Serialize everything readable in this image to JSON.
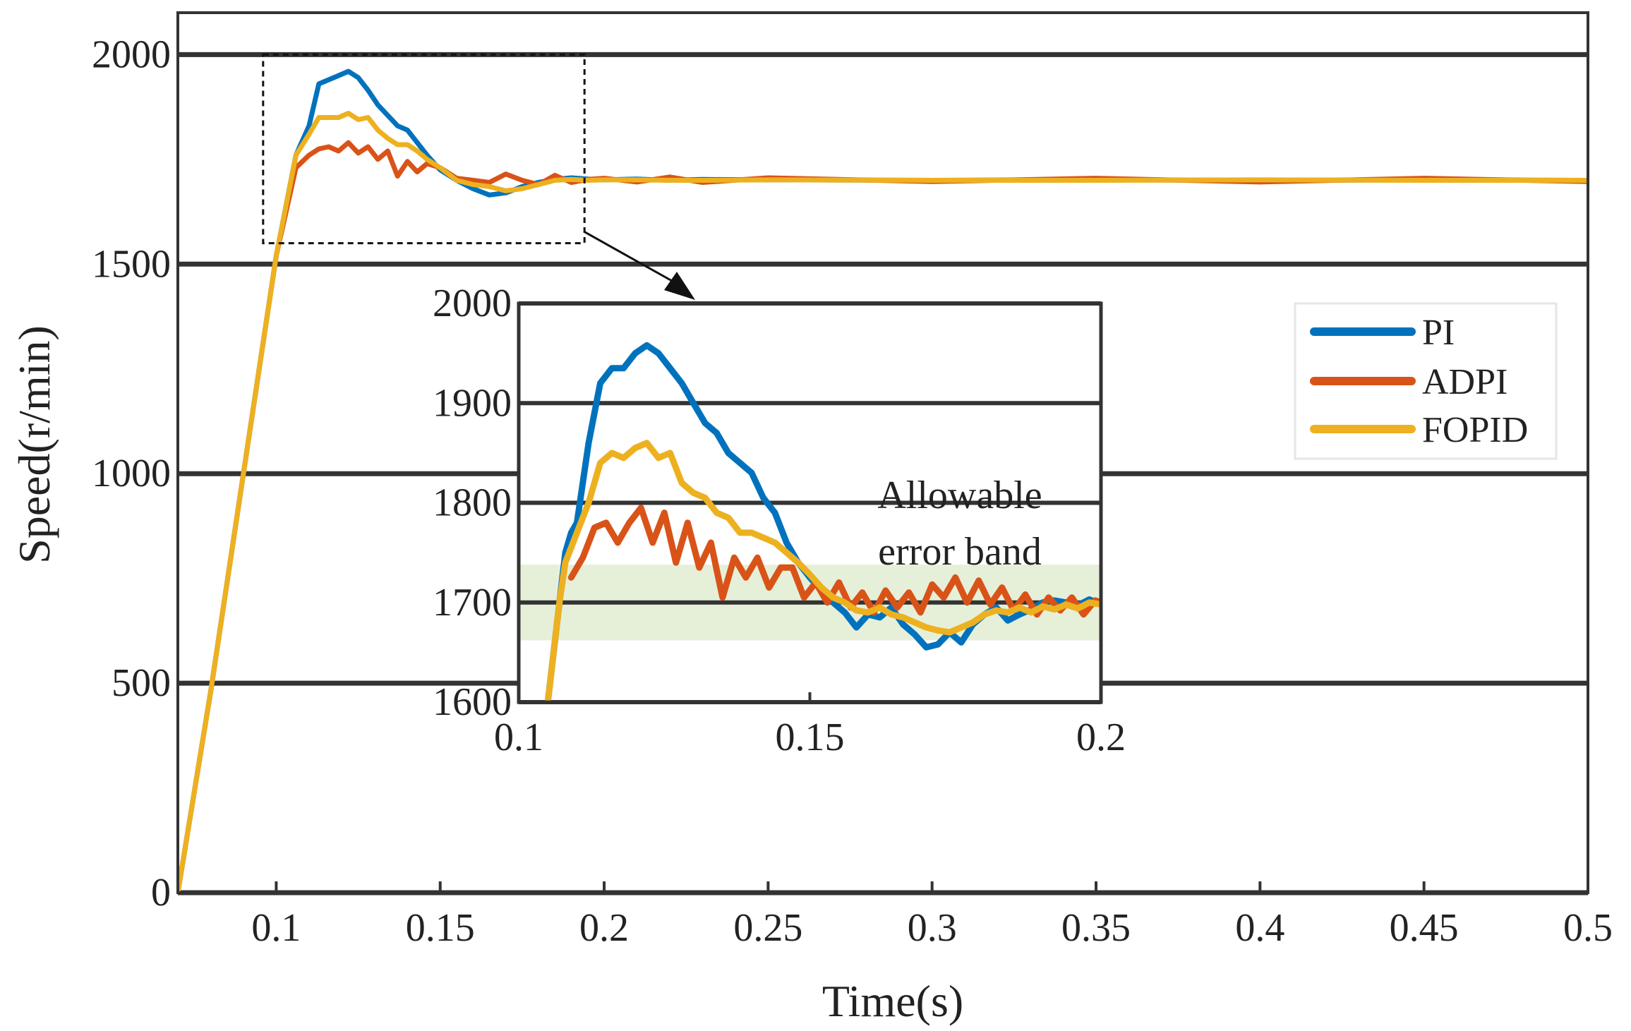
{
  "chart_data": [
    {
      "id": "main",
      "type": "line",
      "title": "",
      "xlabel": "Time(s)",
      "ylabel": "Speed(r/min)",
      "xlim": [
        0.07,
        0.5
      ],
      "ylim": [
        0,
        2100
      ],
      "x_ticks": [
        0.1,
        0.15,
        0.2,
        0.25,
        0.3,
        0.35,
        0.4,
        0.45,
        0.5
      ],
      "x_tick_labels": [
        "0.1",
        "0.15",
        "0.2",
        "0.25",
        "0.3",
        "0.35",
        "0.4",
        "0.45",
        "0.5"
      ],
      "y_ticks": [
        0,
        500,
        1000,
        1500,
        2000
      ],
      "y_tick_labels": [
        "0",
        "500",
        "1000",
        "1500",
        "2000"
      ],
      "grid": "horizontal",
      "series": [
        {
          "name": "PI",
          "color": "#0072BD",
          "x": [
            0.07,
            0.08,
            0.09,
            0.1,
            0.106,
            0.11,
            0.113,
            0.116,
            0.119,
            0.122,
            0.125,
            0.128,
            0.131,
            0.134,
            0.137,
            0.14,
            0.143,
            0.146,
            0.15,
            0.155,
            0.16,
            0.165,
            0.17,
            0.175,
            0.18,
            0.185,
            0.19,
            0.195,
            0.2,
            0.21,
            0.22,
            0.23,
            0.25,
            0.3,
            0.35,
            0.4,
            0.45,
            0.5
          ],
          "y": [
            0,
            480,
            1000,
            1520,
            1760,
            1830,
            1930,
            1940,
            1950,
            1960,
            1945,
            1915,
            1880,
            1855,
            1830,
            1820,
            1790,
            1760,
            1725,
            1700,
            1680,
            1665,
            1670,
            1685,
            1695,
            1702,
            1706,
            1703,
            1701,
            1703,
            1700,
            1702,
            1701,
            1700,
            1701,
            1700,
            1701,
            1700
          ]
        },
        {
          "name": "ADPI",
          "color": "#D95319",
          "x": [
            0.07,
            0.08,
            0.09,
            0.1,
            0.106,
            0.11,
            0.113,
            0.116,
            0.119,
            0.122,
            0.125,
            0.128,
            0.131,
            0.134,
            0.137,
            0.14,
            0.143,
            0.146,
            0.15,
            0.155,
            0.16,
            0.165,
            0.17,
            0.175,
            0.18,
            0.185,
            0.19,
            0.195,
            0.2,
            0.21,
            0.22,
            0.23,
            0.25,
            0.3,
            0.35,
            0.4,
            0.45,
            0.5
          ],
          "y": [
            0,
            480,
            1000,
            1520,
            1730,
            1760,
            1775,
            1780,
            1770,
            1790,
            1765,
            1780,
            1750,
            1770,
            1710,
            1745,
            1720,
            1740,
            1730,
            1705,
            1700,
            1695,
            1715,
            1700,
            1690,
            1712,
            1695,
            1702,
            1705,
            1696,
            1708,
            1695,
            1706,
            1697,
            1705,
            1696,
            1705,
            1697
          ]
        },
        {
          "name": "FOPID",
          "color": "#EDB120",
          "x": [
            0.07,
            0.08,
            0.09,
            0.1,
            0.106,
            0.11,
            0.113,
            0.116,
            0.119,
            0.122,
            0.125,
            0.128,
            0.131,
            0.134,
            0.137,
            0.14,
            0.143,
            0.146,
            0.15,
            0.155,
            0.16,
            0.165,
            0.17,
            0.175,
            0.18,
            0.185,
            0.19,
            0.195,
            0.2,
            0.21,
            0.22,
            0.23,
            0.25,
            0.3,
            0.35,
            0.4,
            0.45,
            0.5
          ],
          "y": [
            0,
            480,
            1000,
            1520,
            1760,
            1810,
            1850,
            1850,
            1850,
            1860,
            1845,
            1850,
            1820,
            1800,
            1785,
            1785,
            1770,
            1750,
            1730,
            1700,
            1690,
            1685,
            1675,
            1680,
            1690,
            1700,
            1702,
            1700,
            1701,
            1701,
            1700,
            1700,
            1701,
            1700,
            1700,
            1701,
            1700,
            1700
          ]
        }
      ],
      "legend": {
        "position": "top-right",
        "entries": [
          "PI",
          "ADPI",
          "FOPID"
        ]
      },
      "zoom_box": {
        "x_range": [
          0.096,
          0.194
        ],
        "y_range": [
          1550,
          2000
        ]
      }
    },
    {
      "id": "inset",
      "type": "line",
      "title": "",
      "xlim": [
        0.1,
        0.2
      ],
      "ylim": [
        1600,
        2000
      ],
      "x_ticks": [
        0.1,
        0.15,
        0.2
      ],
      "x_tick_labels": [
        "0.1",
        "0.15",
        "0.2"
      ],
      "y_ticks": [
        1600,
        1700,
        1800,
        1900,
        2000
      ],
      "y_tick_labels": [
        "1600",
        "1700",
        "1800",
        "1900",
        "2000"
      ],
      "grid": "horizontal",
      "error_band": [
        1662,
        1738
      ],
      "annotation": [
        "Allowable",
        "error band"
      ],
      "series": [
        {
          "name": "PI",
          "color": "#0072BD",
          "x": [
            0.105,
            0.107,
            0.108,
            0.109,
            0.11,
            0.112,
            0.114,
            0.116,
            0.118,
            0.12,
            0.122,
            0.124,
            0.126,
            0.128,
            0.13,
            0.132,
            0.134,
            0.136,
            0.138,
            0.14,
            0.142,
            0.144,
            0.146,
            0.148,
            0.15,
            0.152,
            0.154,
            0.156,
            0.158,
            0.16,
            0.162,
            0.164,
            0.166,
            0.168,
            0.17,
            0.172,
            0.174,
            0.176,
            0.178,
            0.18,
            0.182,
            0.184,
            0.186,
            0.188,
            0.19,
            0.192,
            0.194,
            0.196,
            0.198,
            0.2
          ],
          "y": [
            1600,
            1700,
            1750,
            1770,
            1780,
            1860,
            1920,
            1935,
            1935,
            1950,
            1958,
            1950,
            1935,
            1920,
            1900,
            1880,
            1870,
            1850,
            1840,
            1830,
            1805,
            1790,
            1760,
            1740,
            1725,
            1712,
            1700,
            1690,
            1675,
            1688,
            1685,
            1695,
            1678,
            1668,
            1655,
            1658,
            1670,
            1660,
            1678,
            1688,
            1695,
            1682,
            1688,
            1693,
            1700,
            1702,
            1700,
            1697,
            1703,
            1698
          ]
        },
        {
          "name": "ADPI",
          "color": "#D95319",
          "x": [
            0.109,
            0.111,
            0.113,
            0.115,
            0.117,
            0.119,
            0.121,
            0.123,
            0.125,
            0.127,
            0.129,
            0.131,
            0.133,
            0.135,
            0.137,
            0.139,
            0.141,
            0.143,
            0.145,
            0.147,
            0.149,
            0.151,
            0.153,
            0.155,
            0.157,
            0.159,
            0.161,
            0.163,
            0.165,
            0.167,
            0.169,
            0.171,
            0.173,
            0.175,
            0.177,
            0.179,
            0.181,
            0.183,
            0.185,
            0.187,
            0.189,
            0.191,
            0.193,
            0.195,
            0.197,
            0.199,
            0.2
          ],
          "y": [
            1725,
            1745,
            1775,
            1780,
            1760,
            1780,
            1795,
            1760,
            1790,
            1740,
            1780,
            1735,
            1760,
            1705,
            1745,
            1725,
            1745,
            1715,
            1735,
            1735,
            1705,
            1720,
            1700,
            1720,
            1695,
            1710,
            1690,
            1712,
            1695,
            1710,
            1690,
            1718,
            1705,
            1725,
            1700,
            1722,
            1698,
            1715,
            1692,
            1708,
            1688,
            1705,
            1692,
            1705,
            1688,
            1702,
            1700
          ]
        },
        {
          "name": "FOPID",
          "color": "#EDB120",
          "x": [
            0.105,
            0.107,
            0.108,
            0.11,
            0.112,
            0.114,
            0.116,
            0.118,
            0.12,
            0.122,
            0.124,
            0.126,
            0.128,
            0.13,
            0.132,
            0.134,
            0.136,
            0.138,
            0.14,
            0.142,
            0.144,
            0.146,
            0.148,
            0.15,
            0.152,
            0.154,
            0.156,
            0.158,
            0.16,
            0.162,
            0.164,
            0.166,
            0.168,
            0.17,
            0.172,
            0.174,
            0.176,
            0.178,
            0.18,
            0.182,
            0.184,
            0.186,
            0.188,
            0.19,
            0.192,
            0.194,
            0.196,
            0.198,
            0.2
          ],
          "y": [
            1600,
            1700,
            1740,
            1770,
            1800,
            1840,
            1850,
            1845,
            1855,
            1860,
            1845,
            1850,
            1820,
            1810,
            1805,
            1790,
            1785,
            1770,
            1770,
            1765,
            1760,
            1750,
            1740,
            1728,
            1715,
            1705,
            1700,
            1692,
            1690,
            1695,
            1688,
            1685,
            1680,
            1675,
            1672,
            1670,
            1675,
            1680,
            1688,
            1692,
            1690,
            1695,
            1690,
            1696,
            1693,
            1698,
            1694,
            1700,
            1698
          ]
        }
      ]
    }
  ]
}
